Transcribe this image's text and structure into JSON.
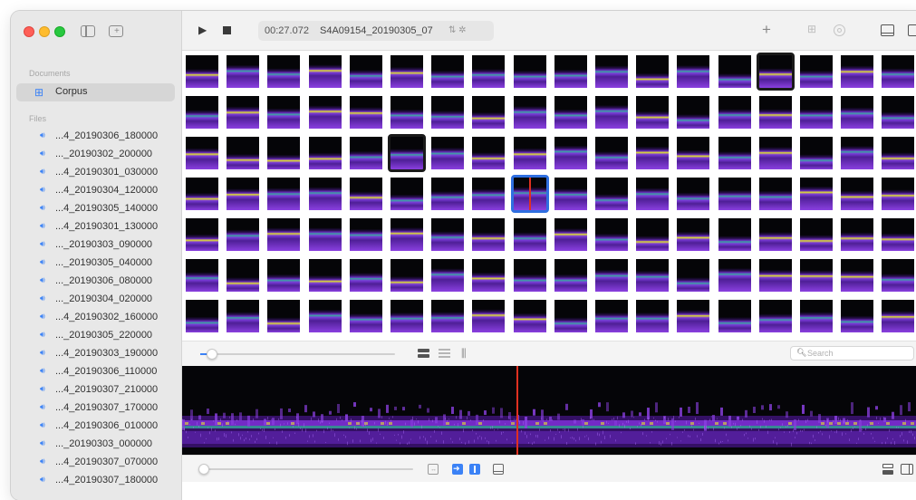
{
  "sidebar": {
    "documents_label": "Documents",
    "corpus_label": "Corpus",
    "files_label": "Files",
    "files": [
      "...4_20190306_180000",
      "..._20190302_200000",
      "...4_20190301_030000",
      "...4_20190304_120000",
      "...4_20190305_140000",
      "...4_20190301_130000",
      "..._20190303_090000",
      "..._20190305_040000",
      "..._20190306_080000",
      "..._20190304_020000",
      "...4_20190302_160000",
      "..._20190305_220000",
      "...4_20190303_190000",
      "...4_20190306_110000",
      "...4_20190307_210000",
      "...4_20190307_170000",
      "...4_20190306_010000",
      "..._20190303_000000",
      "...4_20190307_070000",
      "...4_20190307_180000"
    ]
  },
  "toolbar": {
    "time": "00:27.072",
    "filename": "S4A09154_20190305_07",
    "lcd_icons": "⇅ ✲"
  },
  "search": {
    "placeholder": "Search"
  },
  "colors": {
    "accent_blue": "#3b82f6",
    "playhead_red": "#e03020",
    "spectrogram_bg": "#050508",
    "spectrogram_purple": "#7a2fd0",
    "spectrogram_yellow": "#e6e52a"
  },
  "grid": {
    "selected_thumb": "row-3-col-8",
    "highlighted_thumbs": [
      "row-0-col-14",
      "row-2-col-5"
    ]
  }
}
